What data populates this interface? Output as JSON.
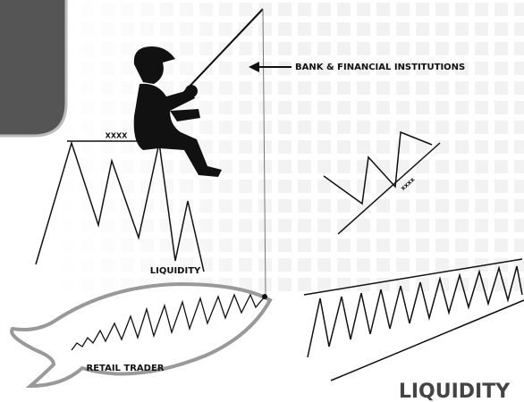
{
  "labels": {
    "institutions": "BANK & FINANCIAL INSTITUTIONS",
    "top_level": "XXXX",
    "wedge_level": "xxxx",
    "liquidity_small": "LIQUIDITY",
    "retail": "RETAIL TRADER",
    "liquidity_big": "LIQUIDITY"
  }
}
